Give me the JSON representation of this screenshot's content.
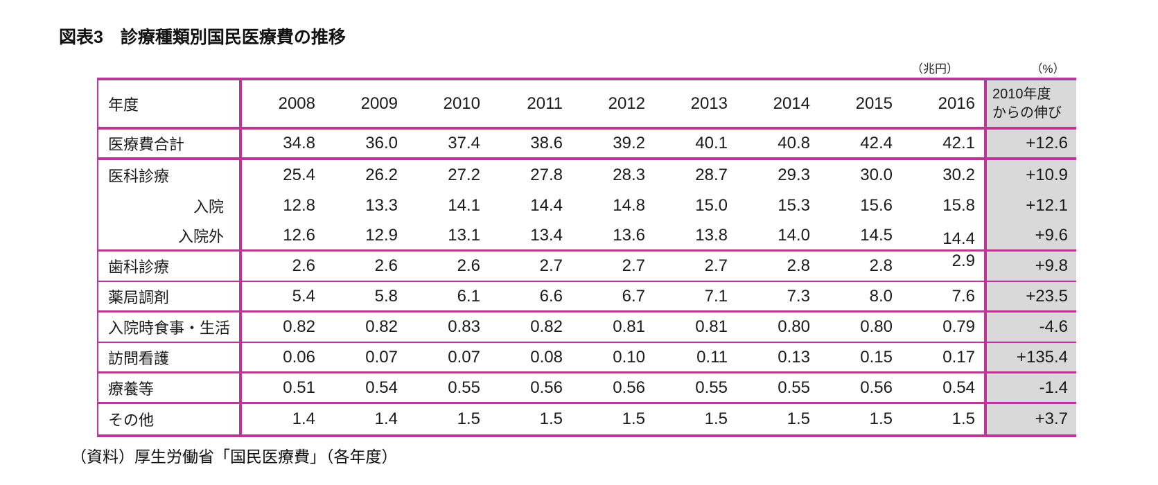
{
  "title": "図表3　診療種類別国民医療費の推移",
  "units": {
    "values_unit": "（兆円）",
    "growth_unit": "（%）"
  },
  "table": {
    "header": {
      "label": "年度",
      "years": [
        "2008",
        "2009",
        "2010",
        "2011",
        "2012",
        "2013",
        "2014",
        "2015",
        "2016"
      ],
      "growth_label": "2010年度\nからの伸び"
    },
    "rows": [
      {
        "label": "医療費合計",
        "sub": false,
        "values": [
          "34.8",
          "36.0",
          "37.4",
          "38.6",
          "39.2",
          "40.1",
          "40.8",
          "42.4",
          "42.1"
        ],
        "growth": "+12.6"
      },
      {
        "label": "医科診療",
        "sub": false,
        "values": [
          "25.4",
          "26.2",
          "27.2",
          "27.8",
          "28.3",
          "28.7",
          "29.3",
          "30.0",
          "30.2"
        ],
        "growth": "+10.9"
      },
      {
        "label": "入院",
        "sub": true,
        "values": [
          "12.8",
          "13.3",
          "14.1",
          "14.4",
          "14.8",
          "15.0",
          "15.3",
          "15.6",
          "15.8"
        ],
        "growth": "+12.1"
      },
      {
        "label": "入院外",
        "sub": true,
        "values": [
          "12.6",
          "12.9",
          "13.1",
          "13.4",
          "13.6",
          "13.8",
          "14.0",
          "14.5",
          "14.4"
        ],
        "growth": "+9.6"
      },
      {
        "label": "歯科診療",
        "sub": false,
        "values": [
          "2.6",
          "2.6",
          "2.6",
          "2.7",
          "2.7",
          "2.7",
          "2.8",
          "2.8",
          "2.9"
        ],
        "growth": "+9.8"
      },
      {
        "label": "薬局調剤",
        "sub": false,
        "values": [
          "5.4",
          "5.8",
          "6.1",
          "6.6",
          "6.7",
          "7.1",
          "7.3",
          "8.0",
          "7.6"
        ],
        "growth": "+23.5"
      },
      {
        "label": "入院時食事・生活",
        "sub": false,
        "values": [
          "0.82",
          "0.82",
          "0.83",
          "0.82",
          "0.81",
          "0.81",
          "0.80",
          "0.80",
          "0.79"
        ],
        "growth": "-4.6"
      },
      {
        "label": "訪問看護",
        "sub": false,
        "values": [
          "0.06",
          "0.07",
          "0.07",
          "0.08",
          "0.10",
          "0.11",
          "0.13",
          "0.15",
          "0.17"
        ],
        "growth": "+135.4"
      },
      {
        "label": "療養等",
        "sub": false,
        "values": [
          "0.51",
          "0.54",
          "0.55",
          "0.56",
          "0.56",
          "0.55",
          "0.55",
          "0.56",
          "0.54"
        ],
        "growth": "-1.4"
      },
      {
        "label": "その他",
        "sub": false,
        "values": [
          "1.4",
          "1.4",
          "1.5",
          "1.5",
          "1.5",
          "1.5",
          "1.5",
          "1.5",
          "1.5"
        ],
        "growth": "+3.7"
      }
    ]
  },
  "source": "（資料）厚生労働省「国民医療費」（各年度）",
  "colors": {
    "accent": "#b43a96",
    "growth_column_bg": "#d9d9d9",
    "text": "#1a1a1a"
  }
}
